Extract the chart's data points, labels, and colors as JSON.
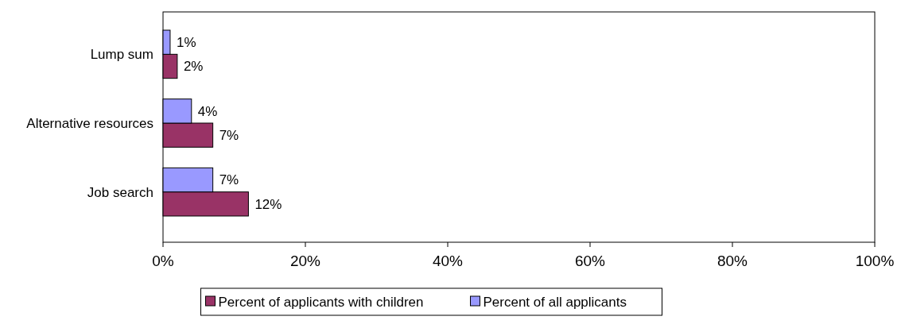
{
  "chart_data": {
    "type": "bar",
    "orientation": "horizontal",
    "categories": [
      "Lump sum",
      "Alternative resources",
      "Job search"
    ],
    "series": [
      {
        "name": "Percent of applicants with children",
        "color": "#993366",
        "values": [
          2,
          7,
          12
        ],
        "value_labels": [
          "2%",
          "7%",
          "12%"
        ]
      },
      {
        "name": "Percent of all applicants",
        "color": "#9999ff",
        "values": [
          1,
          4,
          7
        ],
        "value_labels": [
          "1%",
          "4%",
          "7%"
        ]
      }
    ],
    "xlim": [
      0,
      100
    ],
    "xticks": [
      {
        "value": 0,
        "label": "0%"
      },
      {
        "value": 20,
        "label": "20%"
      },
      {
        "value": 40,
        "label": "40%"
      },
      {
        "value": 60,
        "label": "60%"
      },
      {
        "value": 80,
        "label": "80%"
      },
      {
        "value": 100,
        "label": "100%"
      }
    ],
    "grid": false,
    "legend": "bottom"
  }
}
